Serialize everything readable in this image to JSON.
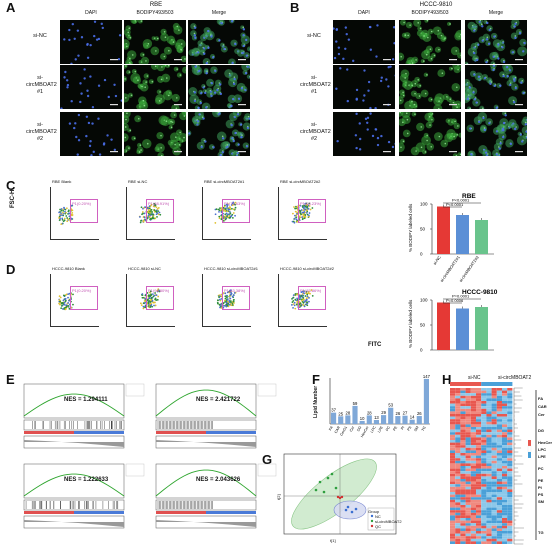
{
  "panels": {
    "A": {
      "letter": "A",
      "title": "RBE",
      "cols": [
        "DAPI",
        "BODIPY493/503",
        "Merge"
      ],
      "rows": [
        "si-NC",
        "si-circMBOAT2 #1",
        "si-circMBOAT2 #2"
      ]
    },
    "B": {
      "letter": "B",
      "title": "HCCC-9810",
      "cols": [
        "DAPI",
        "BODIPY493/503",
        "Merge"
      ],
      "rows": [
        "si-NC",
        "si-circMBOAT2 #1",
        "si-circMBOAT2 #2"
      ]
    },
    "C": {
      "letter": "C",
      "ylabel": "FSC-H",
      "titles": [
        "RBE Blank",
        "RBE si-NC",
        "RBE si-circMBOAT2#1",
        "RBE si-circMBOAT2#2"
      ],
      "gates": [
        "P1(0.20%)",
        "P1(88.91%)",
        "P1(74.63%)",
        "P1(68.23%)"
      ]
    },
    "D": {
      "letter": "D",
      "xlabel": "FITC",
      "titles": [
        "HCCC-9810 Blank",
        "HCCC-9810 si-NC",
        "HCCC-9810 si-circMBOAT2#1",
        "HCCC-9810 si-circMBOAT2#2"
      ],
      "gates": [
        "P1(0.20%)",
        "P1(94.80%)",
        "P1(83.38%)",
        "P1(85.86%)"
      ]
    },
    "E": {
      "letter": "E",
      "nes": [
        "NES = 1.294111",
        "NES = 2.421722",
        "NES = 1.222633",
        "NES = 2.043626"
      ]
    },
    "F": {
      "letter": "F",
      "ylabel": "Lipid Number"
    },
    "G": {
      "letter": "G",
      "xlabel": "t[1]",
      "ylabel": "t[2]",
      "legend_title": "Group",
      "legend": [
        "NC",
        "si-circMBOAT2",
        "QC"
      ]
    },
    "H": {
      "letter": "H",
      "groups": [
        "si-NC",
        "si-circMBOAT2"
      ],
      "classes": [
        "FA",
        "CAR",
        "Cer",
        "DG",
        "HexCer",
        "LPC",
        "LPE",
        "PC",
        "PE",
        "PI",
        "PS",
        "SM",
        "TG"
      ]
    }
  },
  "chart_data": [
    {
      "type": "bar",
      "title": "RBE",
      "ylabel": "% BODIPY labeled cells",
      "categories": [
        "si-NC",
        "si-circMBOAT2#1",
        "si-circMBOAT2#2"
      ],
      "values": [
        95,
        78,
        68
      ],
      "ylim": [
        0,
        100
      ],
      "pvalues": [
        "P<0.0001",
        "P<0.0001"
      ],
      "colors": [
        "#e53935",
        "#5b8fd6",
        "#69c48c"
      ]
    },
    {
      "type": "bar",
      "title": "HCCC-9810",
      "ylabel": "% BODIPY labeled cells",
      "categories": [
        "si-NC",
        "si-circMBOAT2#1",
        "si-circMBOAT2#2"
      ],
      "values": [
        95,
        83,
        86
      ],
      "ylim": [
        0,
        100
      ],
      "pvalues": [
        "P=0.0006",
        "P=0.0001"
      ],
      "colors": [
        "#e53935",
        "#5b8fd6",
        "#69c48c"
      ]
    },
    {
      "type": "bar",
      "ylabel": "Lipid Number",
      "categories": [
        "FA",
        "CAR",
        "CerG1",
        "Cer",
        "DG",
        "HexCer",
        "LPC",
        "LPE",
        "PC",
        "PE",
        "PI",
        "PS",
        "SM",
        "TG"
      ],
      "values": [
        37,
        25,
        28,
        59,
        10,
        28,
        13,
        29,
        53,
        26,
        27,
        14,
        26,
        147
      ],
      "ylim": [
        0,
        150
      ]
    }
  ]
}
